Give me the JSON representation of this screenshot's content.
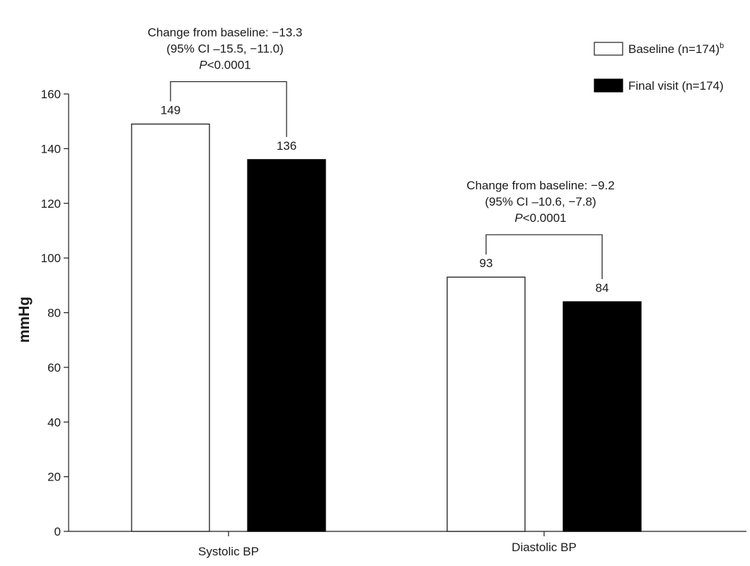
{
  "chart_data": {
    "type": "bar",
    "categories": [
      "Systolic BP",
      "Diastolic BP"
    ],
    "series": [
      {
        "name": "Baseline (n=174)",
        "name_superscript": "b",
        "values": [
          149,
          93
        ],
        "fill": "#ffffff",
        "stroke": "#1a1a1a"
      },
      {
        "name": "Final visit (n=174)",
        "values": [
          136,
          84
        ],
        "fill": "#000000",
        "stroke": "#000000"
      }
    ],
    "data_labels": [
      [
        "149",
        "93"
      ],
      [
        "136",
        "84"
      ]
    ],
    "title": "",
    "xlabel": "",
    "ylabel": "mmHg",
    "ylim": [
      0,
      160
    ],
    "yticks": [
      0,
      20,
      40,
      60,
      80,
      100,
      120,
      140,
      160
    ],
    "grid": false,
    "legend_position": "top-right",
    "annotations": [
      {
        "category": "Systolic BP",
        "line1": "Change from baseline: −13.3",
        "line2": "(95% CI –15.5,  −11.0)",
        "p_letter": "P",
        "p_rest": "<0.0001"
      },
      {
        "category": "Diastolic BP",
        "line1": "Change from baseline: −9.2",
        "line2": "(95% CI –10.6,  −7.8)",
        "p_letter": "P",
        "p_rest": "<0.0001"
      }
    ]
  }
}
